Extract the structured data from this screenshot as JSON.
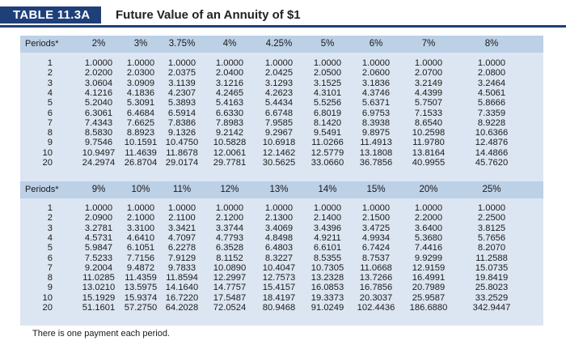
{
  "header": {
    "tag": "TABLE 11.3A",
    "title": "Future Value of an Annuity of $1"
  },
  "colors": {
    "tag_bg": "#1f3f7a",
    "panel_bg": "#dce6f2",
    "header_band": "#bcd0e6"
  },
  "table": {
    "periods_label": "Periods*",
    "periods": [
      "1",
      "2",
      "3",
      "4",
      "5",
      "6",
      "7",
      "8",
      "9",
      "10",
      "20"
    ],
    "top": {
      "rates": [
        "2%",
        "3%",
        "3.75%",
        "4%",
        "4.25%",
        "5%",
        "6%",
        "7%",
        "8%"
      ],
      "rows": [
        [
          "1.0000",
          "1.0000",
          "1.0000",
          "1.0000",
          "1.0000",
          "1.0000",
          "1.0000",
          "1.0000",
          "1.0000"
        ],
        [
          "2.0200",
          "2.0300",
          "2.0375",
          "2.0400",
          "2.0425",
          "2.0500",
          "2.0600",
          "2.0700",
          "2.0800"
        ],
        [
          "3.0604",
          "3.0909",
          "3.1139",
          "3.1216",
          "3.1293",
          "3.1525",
          "3.1836",
          "3.2149",
          "3.2464"
        ],
        [
          "4.1216",
          "4.1836",
          "4.2307",
          "4.2465",
          "4.2623",
          "4.3101",
          "4.3746",
          "4.4399",
          "4.5061"
        ],
        [
          "5.2040",
          "5.3091",
          "5.3893",
          "5.4163",
          "5.4434",
          "5.5256",
          "5.6371",
          "5.7507",
          "5.8666"
        ],
        [
          "6.3061",
          "6.4684",
          "6.5914",
          "6.6330",
          "6.6748",
          "6.8019",
          "6.9753",
          "7.1533",
          "7.3359"
        ],
        [
          "7.4343",
          "7.6625",
          "7.8386",
          "7.8983",
          "7.9585",
          "8.1420",
          "8.3938",
          "8.6540",
          "8.9228"
        ],
        [
          "8.5830",
          "8.8923",
          "9.1326",
          "9.2142",
          "9.2967",
          "9.5491",
          "9.8975",
          "10.2598",
          "10.6366"
        ],
        [
          "9.7546",
          "10.1591",
          "10.4750",
          "10.5828",
          "10.6918",
          "11.0266",
          "11.4913",
          "11.9780",
          "12.4876"
        ],
        [
          "10.9497",
          "11.4639",
          "11.8678",
          "12.0061",
          "12.1462",
          "12.5779",
          "13.1808",
          "13.8164",
          "14.4866"
        ],
        [
          "24.2974",
          "26.8704",
          "29.0174",
          "29.7781",
          "30.5625",
          "33.0660",
          "36.7856",
          "40.9955",
          "45.7620"
        ]
      ]
    },
    "bottom": {
      "rates": [
        "9%",
        "10%",
        "11%",
        "12%",
        "13%",
        "14%",
        "15%",
        "20%",
        "25%"
      ],
      "rows": [
        [
          "1.0000",
          "1.0000",
          "1.0000",
          "1.0000",
          "1.0000",
          "1.0000",
          "1.0000",
          "1.0000",
          "1.0000"
        ],
        [
          "2.0900",
          "2.1000",
          "2.1100",
          "2.1200",
          "2.1300",
          "2.1400",
          "2.1500",
          "2.2000",
          "2.2500"
        ],
        [
          "3.2781",
          "3.3100",
          "3.3421",
          "3.3744",
          "3.4069",
          "3.4396",
          "3.4725",
          "3.6400",
          "3.8125"
        ],
        [
          "4.5731",
          "4.6410",
          "4.7097",
          "4.7793",
          "4.8498",
          "4.9211",
          "4.9934",
          "5.3680",
          "5.7656"
        ],
        [
          "5.9847",
          "6.1051",
          "6.2278",
          "6.3528",
          "6.4803",
          "6.6101",
          "6.7424",
          "7.4416",
          "8.2070"
        ],
        [
          "7.5233",
          "7.7156",
          "7.9129",
          "8.1152",
          "8.3227",
          "8.5355",
          "8.7537",
          "9.9299",
          "11.2588"
        ],
        [
          "9.2004",
          "9.4872",
          "9.7833",
          "10.0890",
          "10.4047",
          "10.7305",
          "11.0668",
          "12.9159",
          "15.0735"
        ],
        [
          "11.0285",
          "11.4359",
          "11.8594",
          "12.2997",
          "12.7573",
          "13.2328",
          "13.7266",
          "16.4991",
          "19.8419"
        ],
        [
          "13.0210",
          "13.5975",
          "14.1640",
          "14.7757",
          "15.4157",
          "16.0853",
          "16.7856",
          "20.7989",
          "25.8023"
        ],
        [
          "15.1929",
          "15.9374",
          "16.7220",
          "17.5487",
          "18.4197",
          "19.3373",
          "20.3037",
          "25.9587",
          "33.2529"
        ],
        [
          "51.1601",
          "57.2750",
          "64.2028",
          "72.0524",
          "80.9468",
          "91.0249",
          "102.4436",
          "186.6880",
          "342.9447"
        ]
      ]
    }
  },
  "footnote": "There is one payment each period."
}
